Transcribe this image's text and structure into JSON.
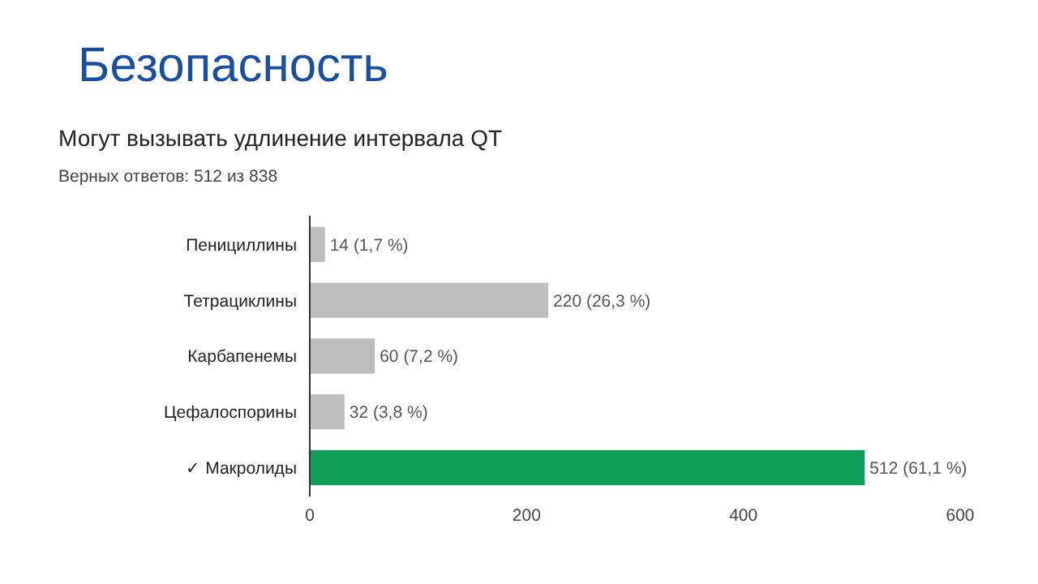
{
  "chart_data": {
    "type": "bar",
    "orientation": "horizontal",
    "title": "Безопасность",
    "subtitle": "Могут вызывать удлинение интервала QT",
    "annotations": [
      "Верных ответов: 512 из 838"
    ],
    "categories": [
      "Пенициллины",
      "Тетрациклины",
      "Карбапенемы",
      "Цефалоспорины",
      "✓ Макролиды"
    ],
    "values": [
      14,
      220,
      60,
      32,
      512
    ],
    "colors": [
      "#bdbdbd",
      "#bdbdbd",
      "#bdbdbd",
      "#bdbdbd",
      "#0f9d58"
    ],
    "value_labels": [
      "14 (1,7 %)",
      "220 (26,3 %)",
      "60 (7,2 %)",
      "32 (3,8 %)",
      "512 (61,1 %)"
    ],
    "xlim": [
      0,
      600
    ],
    "xticks": [
      0,
      200,
      400,
      600
    ],
    "grid": false
  }
}
